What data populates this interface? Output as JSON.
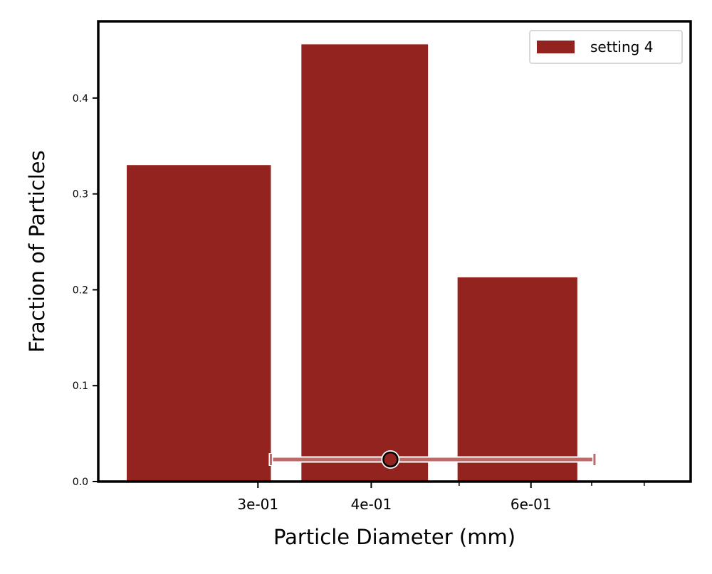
{
  "chart_data": {
    "type": "bar",
    "xlabel": "Particle Diameter (mm)",
    "ylabel": "Fraction of Particles",
    "x_scale": "log",
    "xlim": [
      0.2,
      0.9
    ],
    "ylim": [
      0.0,
      0.48
    ],
    "yticks": [
      0.0,
      0.1,
      0.2,
      0.3,
      0.4
    ],
    "ytick_labels": [
      "0.0",
      "0.1",
      "0.2",
      "0.3",
      "0.4"
    ],
    "xticks_major": [
      0.3,
      0.4,
      0.6
    ],
    "xtick_labels": [
      "3e-01",
      "4e-01",
      "6e-01"
    ],
    "xticks_minor": [
      0.5,
      0.7,
      0.8
    ],
    "series": [
      {
        "name": "setting 4",
        "color": "#93231f",
        "bars": [
          {
            "x_left": 0.215,
            "x_right": 0.31,
            "value": 0.33
          },
          {
            "x_left": 0.335,
            "x_right": 0.462,
            "value": 0.456
          },
          {
            "x_left": 0.498,
            "x_right": 0.675,
            "value": 0.213
          }
        ]
      }
    ],
    "marker": {
      "x": 0.42,
      "y": 0.023,
      "xerr_low": 0.31,
      "xerr_high": 0.705,
      "color": "#93231f",
      "errorbar_color": "#c06a67"
    },
    "legend_position": "top-right",
    "grid": false
  }
}
